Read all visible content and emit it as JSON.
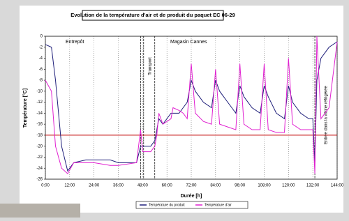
{
  "chart_data": {
    "type": "line",
    "title": "Evolution de la température d'air et de produit du paquet EC 06-29",
    "x_label": "Durée [h]",
    "y_label": "Température [°C]",
    "annotations": [
      "Entrepôt",
      "Magasin Cannes",
      "Transport",
      "Entrée dans la vitrine réfrigérée"
    ],
    "x": [
      0,
      3,
      5,
      8,
      11,
      14,
      20,
      24,
      32,
      36,
      45,
      47,
      48,
      52,
      54,
      55,
      56,
      58,
      62,
      63,
      66,
      68,
      70,
      72,
      74,
      78,
      82,
      84,
      86,
      90,
      94,
      96,
      98,
      102,
      106,
      108,
      110,
      114,
      118,
      120,
      122,
      126,
      130,
      132,
      133,
      134,
      136,
      140,
      144
    ],
    "series": [
      {
        "name": "Température du produit",
        "color": "#1f1f7a",
        "values": [
          -1.5,
          -2,
          -8,
          -20,
          -24.5,
          -23,
          -22.5,
          -22.5,
          -22.5,
          -23,
          -23,
          -20,
          -20,
          -20,
          -19,
          -17,
          -15,
          -16,
          -14,
          -14,
          -14,
          -13,
          -12,
          -8,
          -10,
          -12,
          -13,
          -8,
          -10,
          -12,
          -14,
          -9,
          -11,
          -13,
          -14,
          -9,
          -11,
          -14,
          -15,
          -9,
          -12,
          -14,
          -15,
          -15,
          -23,
          -8,
          -4,
          -2,
          -1
        ]
      },
      {
        "name": "Température d'air",
        "color": "#e020d0",
        "values": [
          -8,
          -10,
          -20,
          -24,
          -25,
          -23,
          -23,
          -23,
          -23.5,
          -23.5,
          -23,
          -17,
          -21,
          -21,
          -20,
          -18,
          -14,
          -16,
          -15,
          -13,
          -13.5,
          -14,
          -15,
          -5,
          -14,
          -15.5,
          -16,
          -6,
          -16,
          -16.5,
          -17,
          -5,
          -16,
          -17,
          -17,
          -5,
          -17,
          -17.5,
          -17.5,
          -4,
          -16,
          -17,
          -17,
          -17,
          -25,
          0,
          -15,
          -13,
          -1
        ]
      }
    ],
    "reference_line": {
      "value": -18,
      "color": "#c00000"
    },
    "markers": [
      47,
      48.5,
      54,
      133
    ],
    "xlim": [
      0,
      144
    ],
    "xticks": [
      {
        "value": 0,
        "label": "0:00"
      },
      {
        "value": 12,
        "label": "12:00"
      },
      {
        "value": 24,
        "label": "24:00"
      },
      {
        "value": 36,
        "label": "36:00"
      },
      {
        "value": 48,
        "label": "48:00"
      },
      {
        "value": 60,
        "label": "60:00"
      },
      {
        "value": 72,
        "label": "72:00"
      },
      {
        "value": 84,
        "label": "84:00"
      },
      {
        "value": 96,
        "label": "96:00"
      },
      {
        "value": 108,
        "label": "108:00"
      },
      {
        "value": 120,
        "label": "120:00"
      },
      {
        "value": 132,
        "label": "132:00"
      },
      {
        "value": 144,
        "label": "144:00"
      }
    ],
    "ylim": [
      -26,
      0
    ],
    "yticks": [
      0,
      -2,
      -4,
      -6,
      -8,
      -10,
      -12,
      -14,
      -16,
      -18,
      -20,
      -22,
      -24,
      -26
    ],
    "grid": true
  }
}
